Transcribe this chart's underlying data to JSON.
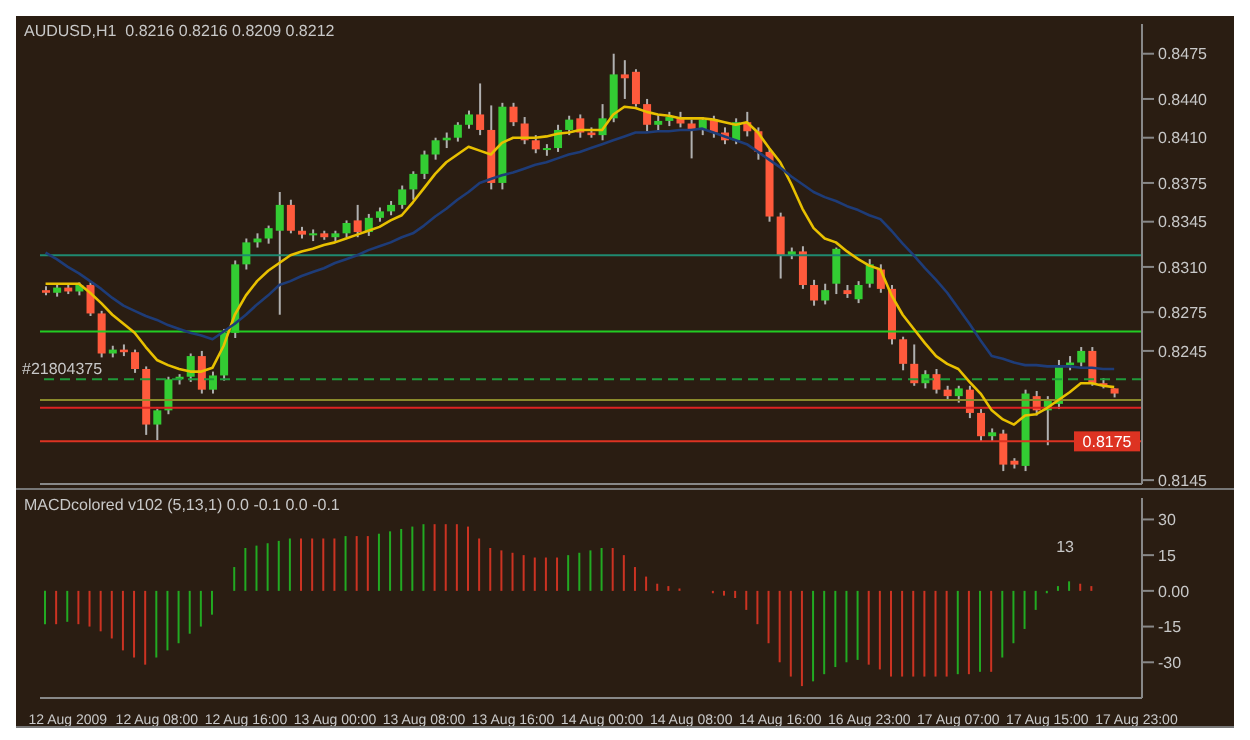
{
  "chart_data": [
    {
      "type": "candlestick",
      "title": "AUDUSD,H1  0.8216 0.8216 0.8209 0.8212",
      "categories": [
        null,
        null,
        null,
        null,
        null,
        null,
        null,
        null,
        null,
        null,
        null,
        null,
        null,
        null,
        null,
        null,
        null,
        null,
        null,
        null,
        null,
        null,
        null,
        null,
        null,
        null,
        null,
        null,
        null,
        null,
        null,
        null,
        null,
        null,
        null,
        null,
        null,
        null,
        null,
        null,
        null,
        null,
        null,
        null,
        null,
        null,
        null,
        null,
        null,
        null,
        null,
        null,
        null,
        null,
        null,
        null,
        null,
        null,
        null,
        null,
        null,
        null,
        null,
        null,
        null,
        null,
        null,
        null,
        null,
        null,
        null,
        null,
        null,
        null,
        null,
        null,
        null,
        null,
        null,
        null,
        null,
        null,
        null,
        null,
        null,
        null,
        null,
        null,
        null,
        null,
        null,
        null,
        null,
        null,
        null,
        null,
        null,
        null,
        null
      ],
      "ohlc": [
        [
          0.8292,
          0.8295,
          0.8288,
          0.829
        ],
        [
          0.829,
          0.8296,
          0.8287,
          0.8294
        ],
        [
          0.8294,
          0.8297,
          0.8289,
          0.8291
        ],
        [
          0.8291,
          0.8298,
          0.8288,
          0.8296
        ],
        [
          0.8296,
          0.8298,
          0.8272,
          0.8274
        ],
        [
          0.8274,
          0.8276,
          0.824,
          0.8243
        ],
        [
          0.8243,
          0.8249,
          0.824,
          0.8246
        ],
        [
          0.8246,
          0.825,
          0.8241,
          0.8244
        ],
        [
          0.8244,
          0.8246,
          0.8228,
          0.8231
        ],
        [
          0.8231,
          0.8233,
          0.818,
          0.8188
        ],
        [
          0.8188,
          0.82,
          0.8176,
          0.8199
        ],
        [
          0.8199,
          0.8225,
          0.8196,
          0.8223
        ],
        [
          0.8223,
          0.8227,
          0.8219,
          0.8225
        ],
        [
          0.8225,
          0.8243,
          0.8221,
          0.8241
        ],
        [
          0.8241,
          0.8245,
          0.8212,
          0.8215
        ],
        [
          0.8215,
          0.8229,
          0.8212,
          0.8226
        ],
        [
          0.8226,
          0.8262,
          0.8222,
          0.8259
        ],
        [
          0.8259,
          0.8315,
          0.8255,
          0.8312
        ],
        [
          0.8312,
          0.8332,
          0.8308,
          0.8329
        ],
        [
          0.8329,
          0.8336,
          0.8325,
          0.8332
        ],
        [
          0.8332,
          0.8342,
          0.8328,
          0.834
        ],
        [
          0.8338,
          0.8368,
          0.8273,
          0.8358
        ],
        [
          0.8358,
          0.8362,
          0.8336,
          0.8338
        ],
        [
          0.8338,
          0.8341,
          0.8332,
          0.8335
        ],
        [
          0.8335,
          0.8339,
          0.833,
          0.8336
        ],
        [
          0.8336,
          0.8338,
          0.8331,
          0.8333
        ],
        [
          0.8333,
          0.8338,
          0.833,
          0.8336
        ],
        [
          0.8336,
          0.8346,
          0.8333,
          0.8344
        ],
        [
          0.8346,
          0.8358,
          0.8333,
          0.8337
        ],
        [
          0.8337,
          0.8351,
          0.8334,
          0.8348
        ],
        [
          0.8348,
          0.8356,
          0.8345,
          0.8353
        ],
        [
          0.8353,
          0.8361,
          0.835,
          0.8358
        ],
        [
          0.8358,
          0.8373,
          0.8355,
          0.837
        ],
        [
          0.837,
          0.8384,
          0.8362,
          0.8382
        ],
        [
          0.8382,
          0.84,
          0.8378,
          0.8397
        ],
        [
          0.8397,
          0.841,
          0.8393,
          0.8408
        ],
        [
          0.8408,
          0.8414,
          0.8402,
          0.841
        ],
        [
          0.841,
          0.8422,
          0.8407,
          0.842
        ],
        [
          0.842,
          0.8431,
          0.8417,
          0.8428
        ],
        [
          0.8428,
          0.8452,
          0.8412,
          0.8416
        ],
        [
          0.8416,
          0.8435,
          0.837,
          0.8375
        ],
        [
          0.8375,
          0.8437,
          0.837,
          0.8434
        ],
        [
          0.8434,
          0.8437,
          0.8419,
          0.8422
        ],
        [
          0.8421,
          0.8426,
          0.8405,
          0.8408
        ],
        [
          0.8408,
          0.8412,
          0.8398,
          0.8401
        ],
        [
          0.8401,
          0.8405,
          0.8396,
          0.8402
        ],
        [
          0.8402,
          0.842,
          0.8399,
          0.8416
        ],
        [
          0.8416,
          0.8427,
          0.8412,
          0.8424
        ],
        [
          0.8425,
          0.8428,
          0.841,
          0.8414
        ],
        [
          0.8414,
          0.8418,
          0.841,
          0.8412
        ],
        [
          0.8412,
          0.8436,
          0.8408,
          0.8425
        ],
        [
          0.8425,
          0.8475,
          0.8422,
          0.8459
        ],
        [
          0.8459,
          0.847,
          0.844,
          0.8456
        ],
        [
          0.8461,
          0.8463,
          0.8434,
          0.8436
        ],
        [
          0.8436,
          0.844,
          0.8415,
          0.842
        ],
        [
          0.842,
          0.8428,
          0.8415,
          0.8423
        ],
        [
          0.8423,
          0.843,
          0.8419,
          0.8426
        ],
        [
          0.8426,
          0.843,
          0.8418,
          0.8421
        ],
        [
          0.8421,
          0.8424,
          0.8394,
          0.8416
        ],
        [
          0.8416,
          0.8426,
          0.8412,
          0.8424
        ],
        [
          0.8424,
          0.8427,
          0.841,
          0.8414
        ],
        [
          0.8414,
          0.8418,
          0.8405,
          0.8408
        ],
        [
          0.8408,
          0.8425,
          0.8405,
          0.8422
        ],
        [
          0.8422,
          0.843,
          0.8411,
          0.8415
        ],
        [
          0.8415,
          0.8418,
          0.8393,
          0.8399
        ],
        [
          0.8399,
          0.8402,
          0.8345,
          0.8349
        ],
        [
          0.8349,
          0.8352,
          0.8301,
          0.8319
        ],
        [
          0.8319,
          0.8325,
          0.8316,
          0.8322
        ],
        [
          0.8322,
          0.8326,
          0.8293,
          0.8296
        ],
        [
          0.8296,
          0.83,
          0.828,
          0.8284
        ],
        [
          0.8284,
          0.8297,
          0.8281,
          0.8292
        ],
        [
          0.8297,
          0.8325,
          0.8289,
          0.8324
        ],
        [
          0.8292,
          0.8296,
          0.8286,
          0.8289
        ],
        [
          0.8285,
          0.8299,
          0.8282,
          0.8296
        ],
        [
          0.8297,
          0.8316,
          0.8294,
          0.8312
        ],
        [
          0.8308,
          0.8312,
          0.829,
          0.8293
        ],
        [
          0.8293,
          0.8296,
          0.825,
          0.8254
        ],
        [
          0.8254,
          0.8256,
          0.823,
          0.8235
        ],
        [
          0.8235,
          0.825,
          0.8218,
          0.822
        ],
        [
          0.822,
          0.823,
          0.8216,
          0.8227
        ],
        [
          0.8227,
          0.8231,
          0.8212,
          0.8215
        ],
        [
          0.8215,
          0.8218,
          0.8207,
          0.821
        ],
        [
          0.821,
          0.8218,
          0.8205,
          0.8216
        ],
        [
          0.8215,
          0.8218,
          0.8193,
          0.8197
        ],
        [
          0.8197,
          0.82,
          0.8175,
          0.8179
        ],
        [
          0.8179,
          0.8185,
          0.8175,
          0.8182
        ],
        [
          0.8181,
          0.8184,
          0.8152,
          0.8157
        ],
        [
          0.816,
          0.8162,
          0.8154,
          0.8157
        ],
        [
          0.8156,
          0.8215,
          0.8152,
          0.8212
        ],
        [
          0.821,
          0.8214,
          0.8195,
          0.8199
        ],
        [
          0.8199,
          0.821,
          0.8172,
          0.8207
        ],
        [
          0.8204,
          0.8238,
          0.82,
          0.8234
        ],
        [
          0.8234,
          0.8241,
          0.823,
          0.8236
        ],
        [
          0.8236,
          0.8248,
          0.8233,
          0.8245
        ],
        [
          0.8245,
          0.8248,
          0.8218,
          0.822
        ],
        [
          0.822,
          0.8224,
          0.8216,
          0.8218
        ],
        [
          0.8216,
          0.8216,
          0.8209,
          0.8212
        ],
        null,
        null
      ],
      "series": [
        {
          "type": "line",
          "color": "#e8c000",
          "values": [
            0.8297,
            0.8297,
            0.8297,
            0.8297,
            0.829,
            0.8282,
            0.8273,
            0.8266,
            0.8259,
            0.8248,
            0.8238,
            0.8234,
            0.8231,
            0.8229,
            0.8229,
            0.8232,
            0.8249,
            0.8273,
            0.8288,
            0.8299,
            0.8307,
            0.8313,
            0.8319,
            0.8322,
            0.8324,
            0.8327,
            0.8329,
            0.8332,
            0.8335,
            0.8338,
            0.8341,
            0.8346,
            0.835,
            0.836,
            0.8371,
            0.8382,
            0.8391,
            0.8397,
            0.8403,
            0.84,
            0.8397,
            0.8406,
            0.841,
            0.841,
            0.841,
            0.8411,
            0.8413,
            0.8414,
            0.8416,
            0.8416,
            0.8416,
            0.8428,
            0.8434,
            0.8433,
            0.843,
            0.8428,
            0.8427,
            0.8425,
            0.8425,
            0.8425,
            0.8424,
            0.8422,
            0.842,
            0.8422,
            0.8414,
            0.8402,
            0.8391,
            0.8374,
            0.8355,
            0.834,
            0.8332,
            0.8329,
            0.8322,
            0.8316,
            0.8311,
            0.8308,
            0.8288,
            0.8273,
            0.8262,
            0.8251,
            0.8241,
            0.8235,
            0.8231,
            0.8221,
            0.8212,
            0.8199,
            0.8192,
            0.8188,
            0.8195,
            0.8196,
            0.8201,
            0.8207,
            0.8213,
            0.822,
            0.822,
            0.8218,
            0.8217,
            null,
            null
          ]
        },
        {
          "type": "line",
          "color": "#1e3c78",
          "values": [
            0.8321,
            0.8316,
            0.831,
            0.8305,
            0.8299,
            0.8293,
            0.8286,
            0.828,
            0.8276,
            0.8272,
            0.8269,
            0.8265,
            0.8262,
            0.8259,
            0.8257,
            0.8254,
            0.826,
            0.8266,
            0.8273,
            0.8281,
            0.8288,
            0.8296,
            0.8299,
            0.8303,
            0.8306,
            0.8309,
            0.8313,
            0.8316,
            0.8319,
            0.8323,
            0.8326,
            0.8329,
            0.8333,
            0.8336,
            0.8342,
            0.8349,
            0.8355,
            0.8362,
            0.8368,
            0.8375,
            0.8378,
            0.8381,
            0.8383,
            0.8386,
            0.8389,
            0.8391,
            0.8394,
            0.8397,
            0.8399,
            0.8402,
            0.8405,
            0.8408,
            0.8411,
            0.8414,
            0.8414,
            0.8415,
            0.8415,
            0.8416,
            0.8416,
            0.8417,
            0.8414,
            0.8411,
            0.8408,
            0.8405,
            0.8399,
            0.8393,
            0.8387,
            0.838,
            0.8374,
            0.8368,
            0.8364,
            0.8361,
            0.8357,
            0.8354,
            0.835,
            0.8347,
            0.8338,
            0.8328,
            0.8319,
            0.8309,
            0.83,
            0.829,
            0.8278,
            0.8266,
            0.8253,
            0.8241,
            0.8239,
            0.8236,
            0.8234,
            0.8234,
            0.8233,
            0.8233,
            0.8233,
            0.8232,
            0.8232,
            0.8231,
            0.8231,
            null,
            null
          ]
        }
      ],
      "ylim": [
        0.8142,
        0.8498
      ],
      "yticks": [
        0.8145,
        0.8245,
        0.8275,
        {
          "value": 0.831,
          "label": "0.8310"
        },
        0.8345,
        0.8375,
        {
          "value": 0.841,
          "label": "0.8410"
        },
        {
          "value": 0.844,
          "label": "0.8440"
        },
        0.8475
      ],
      "ref_lines": [
        {
          "axis": "y",
          "value": 0.8319,
          "color": "#1f8a70"
        },
        {
          "axis": "y",
          "value": 0.826,
          "color": "#22cc22"
        },
        {
          "axis": "y",
          "value": 0.8223,
          "color": "#1f9a3a",
          "line_style": "dashed"
        },
        {
          "axis": "y",
          "value": 0.8207,
          "color": "#8a8a2a"
        },
        {
          "axis": "y",
          "value": 0.8201,
          "color": "#dd2222"
        },
        {
          "axis": "y",
          "value": 0.8175,
          "color": "#dd3322",
          "label": "0.8175"
        }
      ],
      "annotations": [
        "#21804375"
      ]
    },
    {
      "type": "bar",
      "title": "MACDcolored v102 (5,13,1) 0.0 -0.1 0.0 -0.1",
      "categories": [
        null,
        null,
        "12 Aug 2009",
        null,
        null,
        null,
        null,
        null,
        null,
        null,
        "12 Aug 08:00",
        null,
        null,
        null,
        null,
        null,
        null,
        null,
        "12 Aug 16:00",
        null,
        null,
        null,
        null,
        null,
        null,
        null,
        "13 Aug 00:00",
        null,
        null,
        null,
        null,
        null,
        null,
        null,
        "13 Aug 08:00",
        null,
        null,
        null,
        null,
        null,
        null,
        null,
        "13 Aug 16:00",
        null,
        null,
        null,
        null,
        null,
        null,
        null,
        "14 Aug 00:00",
        null,
        null,
        null,
        null,
        null,
        null,
        null,
        "14 Aug 08:00",
        null,
        null,
        null,
        null,
        null,
        null,
        null,
        "14 Aug 16:00",
        null,
        null,
        null,
        null,
        null,
        null,
        null,
        "16 Aug 23:00",
        null,
        null,
        null,
        null,
        null,
        null,
        null,
        "17 Aug 07:00",
        null,
        null,
        null,
        null,
        null,
        null,
        null,
        "17 Aug 15:00",
        null,
        null,
        null,
        null,
        null,
        null,
        null,
        "17 Aug 23:00"
      ],
      "values": [
        -14,
        -14,
        -13,
        -14,
        -15,
        -17,
        -20,
        -25,
        -28,
        -31,
        -28,
        -25,
        -22,
        -18,
        -15,
        -10,
        0,
        10,
        18,
        19,
        20,
        21,
        22,
        22,
        22,
        22,
        22,
        23,
        23,
        23,
        24,
        25,
        26,
        27,
        28,
        28,
        28,
        28,
        27,
        22,
        18,
        17,
        16,
        15,
        14,
        14,
        14,
        15,
        16,
        17,
        18,
        18,
        15,
        10,
        6,
        3,
        2,
        1,
        0,
        0,
        -1,
        -2,
        -3,
        -8,
        -14,
        -22,
        -30,
        -36,
        -40,
        -38,
        -35,
        -32,
        -30,
        -29,
        -31,
        -33,
        -36,
        -36,
        -36,
        -36,
        -36,
        -36,
        -35,
        -35,
        -34,
        -34,
        -28,
        -22,
        -16,
        -8,
        -1,
        2,
        4,
        3,
        2,
        0,
        0,
        null,
        null
      ],
      "colors": [
        "#22aa22",
        "#cc3322",
        "#22aa22",
        "#cc3322",
        "#cc3322",
        "#cc3322",
        "#cc3322",
        "#cc3322",
        "#cc3322",
        "#cc3322",
        "#22aa22",
        "#22aa22",
        "#22aa22",
        "#22aa22",
        "#22aa22",
        "#22aa22",
        "#22aa22",
        "#22aa22",
        "#22aa22",
        "#22aa22",
        "#22aa22",
        "#22aa22",
        "#22aa22",
        "#cc3322",
        "#cc3322",
        "#cc3322",
        "#cc3322",
        "#22aa22",
        "#cc3322",
        "#cc3322",
        "#22aa22",
        "#22aa22",
        "#22aa22",
        "#22aa22",
        "#22aa22",
        "#cc3322",
        "#cc3322",
        "#cc3322",
        "#cc3322",
        "#cc3322",
        "#cc3322",
        "#cc3322",
        "#cc3322",
        "#cc3322",
        "#cc3322",
        "#cc3322",
        "#cc3322",
        "#22aa22",
        "#22aa22",
        "#22aa22",
        "#22aa22",
        "#cc3322",
        "#cc3322",
        "#cc3322",
        "#cc3322",
        "#cc3322",
        "#cc3322",
        "#cc3322",
        "#cc3322",
        "#cc3322",
        "#cc3322",
        "#cc3322",
        "#cc3322",
        "#cc3322",
        "#cc3322",
        "#cc3322",
        "#cc3322",
        "#cc3322",
        "#cc3322",
        "#22aa22",
        "#22aa22",
        "#22aa22",
        "#22aa22",
        "#22aa22",
        "#cc3322",
        "#cc3322",
        "#cc3322",
        "#cc3322",
        "#cc3322",
        "#cc3322",
        "#cc3322",
        "#cc3322",
        "#22aa22",
        "#cc3322",
        "#22aa22",
        "#cc3322",
        "#22aa22",
        "#22aa22",
        "#22aa22",
        "#22aa22",
        "#22aa22",
        "#22aa22",
        "#22aa22",
        "#cc3322",
        "#cc3322",
        "#cc3322",
        "#cc3322",
        "#cc3322",
        "#cc3322"
      ],
      "ylim": [
        -45,
        39
      ],
      "yticks": [
        -30,
        -15,
        {
          "value": 0,
          "label": "0.00"
        },
        15,
        30
      ],
      "annotations": [
        "13"
      ]
    }
  ]
}
